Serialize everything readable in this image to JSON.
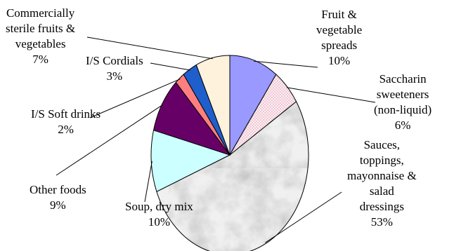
{
  "chart_data": {
    "type": "pie",
    "title": "",
    "slices": [
      {
        "label": [
          "Fruit &",
          "vegetable",
          "spreads"
        ],
        "pct": "10%",
        "value": 10,
        "color": "#9999ff",
        "pattern": "none"
      },
      {
        "label": [
          "Saccharin",
          "sweeteners",
          "(non-liquid)"
        ],
        "pct": "6%",
        "value": 6,
        "color": "#ffeef2",
        "pattern": "dots"
      },
      {
        "label": [
          "Sauces,",
          "toppings,",
          "mayonnaise &",
          "salad",
          "dressings"
        ],
        "pct": "53%",
        "value": 53,
        "color": "#dedede",
        "pattern": "marble"
      },
      {
        "label": [
          "Soup, dry mix"
        ],
        "pct": "10%",
        "value": 10,
        "color": "#ccffff",
        "pattern": "none"
      },
      {
        "label": [
          "Other foods"
        ],
        "pct": "9%",
        "value": 9,
        "color": "#660066",
        "pattern": "none"
      },
      {
        "label": [
          "I/S Soft drinks"
        ],
        "pct": "2%",
        "value": 2,
        "color": "#ff7f7f",
        "pattern": "none"
      },
      {
        "label": [
          "I/S Cordials"
        ],
        "pct": "3%",
        "value": 3,
        "color": "#1f5fcc",
        "pattern": "none"
      },
      {
        "label": [
          "Commercially",
          "sterile fruits &",
          "vegetables"
        ],
        "pct": "7%",
        "value": 7,
        "color": "#fff2dd",
        "pattern": "none"
      }
    ]
  }
}
